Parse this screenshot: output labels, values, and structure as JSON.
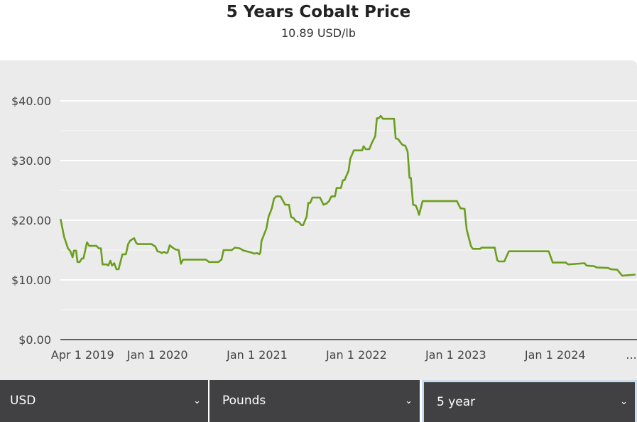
{
  "header": {
    "title": "5 Years Cobalt Price",
    "subtitle": "10.89 USD/lb"
  },
  "controls": {
    "currency": "USD",
    "unit": "Pounds",
    "period": "5 year"
  },
  "colors": {
    "line": "#6b9e1f",
    "panel": "#ebebeb",
    "select_bg": "#414042",
    "focus_border": "#c9dced"
  },
  "chart_data": {
    "type": "line",
    "title": "5 Years Cobalt Price",
    "ylim": [
      0,
      40
    ],
    "xlim": [
      "2019-01-05",
      "2024-10-17"
    ],
    "grid": true,
    "y_ticks": [
      "$0.00",
      "$10.00",
      "$20.00",
      "$30.00",
      "$40.00"
    ],
    "y_tick_values": [
      0,
      10,
      20,
      30,
      40
    ],
    "x_ticks": [
      {
        "date": "2019-04-01",
        "label": "Apr 1 2019"
      },
      {
        "date": "2020-01-01",
        "label": "Jan 1 2020"
      },
      {
        "date": "2021-01-01",
        "label": "Jan 1 2021"
      },
      {
        "date": "2022-01-01",
        "label": "Jan 1 2022"
      },
      {
        "date": "2023-01-01",
        "label": "Jan 1 2023"
      },
      {
        "date": "2024-01-01",
        "label": "Jan 1 2024"
      },
      {
        "date": "2024-10-10",
        "label": "..."
      }
    ],
    "series": [
      {
        "points": [
          [
            "2019-01-05",
            20.2
          ],
          [
            "2019-01-18",
            17.2
          ],
          [
            "2019-02-01",
            15.3
          ],
          [
            "2019-02-10",
            14.8
          ],
          [
            "2019-02-18",
            13.8
          ],
          [
            "2019-02-23",
            14.9
          ],
          [
            "2019-03-03",
            14.9
          ],
          [
            "2019-03-08",
            13.0
          ],
          [
            "2019-03-16",
            13.0
          ],
          [
            "2019-03-24",
            13.6
          ],
          [
            "2019-03-30",
            13.6
          ],
          [
            "2019-04-12",
            16.3
          ],
          [
            "2019-04-20",
            15.7
          ],
          [
            "2019-05-17",
            15.7
          ],
          [
            "2019-05-25",
            15.3
          ],
          [
            "2019-06-02",
            15.3
          ],
          [
            "2019-06-08",
            12.6
          ],
          [
            "2019-06-24",
            12.6
          ],
          [
            "2019-06-29",
            12.4
          ],
          [
            "2019-07-07",
            13.2
          ],
          [
            "2019-07-13",
            12.4
          ],
          [
            "2019-07-21",
            12.8
          ],
          [
            "2019-07-29",
            11.8
          ],
          [
            "2019-08-06",
            11.8
          ],
          [
            "2019-08-20",
            14.3
          ],
          [
            "2019-09-02",
            14.3
          ],
          [
            "2019-09-10",
            16.0
          ],
          [
            "2019-09-18",
            16.6
          ],
          [
            "2019-10-02",
            17.0
          ],
          [
            "2019-10-10",
            16.2
          ],
          [
            "2019-10-15",
            16.0
          ],
          [
            "2019-12-05",
            16.0
          ],
          [
            "2019-12-19",
            15.6
          ],
          [
            "2019-12-27",
            14.8
          ],
          [
            "2020-01-04",
            14.7
          ],
          [
            "2020-01-12",
            14.5
          ],
          [
            "2020-01-20",
            14.7
          ],
          [
            "2020-01-28",
            14.5
          ],
          [
            "2020-02-02",
            14.6
          ],
          [
            "2020-02-10",
            15.8
          ],
          [
            "2020-02-24",
            15.3
          ],
          [
            "2020-03-03",
            15.1
          ],
          [
            "2020-03-14",
            15.0
          ],
          [
            "2020-03-22",
            12.7
          ],
          [
            "2020-03-30",
            13.4
          ],
          [
            "2020-06-22",
            13.4
          ],
          [
            "2020-07-03",
            13.0
          ],
          [
            "2020-08-07",
            13.0
          ],
          [
            "2020-08-18",
            13.4
          ],
          [
            "2020-08-26",
            15.0
          ],
          [
            "2020-09-25",
            15.0
          ],
          [
            "2020-10-06",
            15.4
          ],
          [
            "2020-10-23",
            15.3
          ],
          [
            "2020-11-08",
            14.9
          ],
          [
            "2020-12-05",
            14.6
          ],
          [
            "2020-12-16",
            14.4
          ],
          [
            "2020-12-27",
            14.5
          ],
          [
            "2021-01-04",
            14.3
          ],
          [
            "2021-01-08",
            14.6
          ],
          [
            "2021-01-12",
            16.5
          ],
          [
            "2021-01-30",
            18.6
          ],
          [
            "2021-02-07",
            20.6
          ],
          [
            "2021-02-19",
            22.0
          ],
          [
            "2021-02-27",
            23.6
          ],
          [
            "2021-03-07",
            24.0
          ],
          [
            "2021-03-23",
            24.0
          ],
          [
            "2021-04-09",
            22.6
          ],
          [
            "2021-04-23",
            22.6
          ],
          [
            "2021-05-01",
            20.5
          ],
          [
            "2021-05-09",
            20.4
          ],
          [
            "2021-05-19",
            19.8
          ],
          [
            "2021-05-29",
            19.7
          ],
          [
            "2021-06-07",
            19.2
          ],
          [
            "2021-06-14",
            19.2
          ],
          [
            "2021-06-27",
            20.6
          ],
          [
            "2021-07-03",
            22.9
          ],
          [
            "2021-07-10",
            22.9
          ],
          [
            "2021-07-18",
            23.8
          ],
          [
            "2021-08-15",
            23.8
          ],
          [
            "2021-08-28",
            22.6
          ],
          [
            "2021-09-08",
            22.8
          ],
          [
            "2021-09-17",
            23.2
          ],
          [
            "2021-09-26",
            24.0
          ],
          [
            "2021-10-09",
            24.0
          ],
          [
            "2021-10-15",
            25.4
          ],
          [
            "2021-10-31",
            25.4
          ],
          [
            "2021-11-07",
            26.7
          ],
          [
            "2021-11-13",
            26.7
          ],
          [
            "2021-11-28",
            28.3
          ],
          [
            "2021-12-04",
            30.3
          ],
          [
            "2021-12-17",
            31.7
          ],
          [
            "2022-01-17",
            31.7
          ],
          [
            "2022-01-22",
            32.4
          ],
          [
            "2022-01-30",
            31.9
          ],
          [
            "2022-02-12",
            31.9
          ],
          [
            "2022-02-21",
            32.9
          ],
          [
            "2022-03-06",
            34.1
          ],
          [
            "2022-03-12",
            37.1
          ],
          [
            "2022-03-19",
            37.1
          ],
          [
            "2022-03-26",
            37.5
          ],
          [
            "2022-04-03",
            37.0
          ],
          [
            "2022-05-14",
            37.0
          ],
          [
            "2022-05-20",
            33.7
          ],
          [
            "2022-05-29",
            33.6
          ],
          [
            "2022-06-09",
            32.9
          ],
          [
            "2022-06-15",
            32.6
          ],
          [
            "2022-06-24",
            32.5
          ],
          [
            "2022-07-03",
            31.5
          ],
          [
            "2022-07-10",
            27.1
          ],
          [
            "2022-07-15",
            27.1
          ],
          [
            "2022-07-23",
            22.6
          ],
          [
            "2022-08-01",
            22.5
          ],
          [
            "2022-08-07",
            21.9
          ],
          [
            "2022-08-14",
            20.9
          ],
          [
            "2022-08-27",
            23.2
          ],
          [
            "2022-12-31",
            23.2
          ],
          [
            "2023-01-13",
            22.0
          ],
          [
            "2023-01-28",
            21.9
          ],
          [
            "2023-02-05",
            18.4
          ],
          [
            "2023-02-21",
            15.6
          ],
          [
            "2023-02-28",
            15.2
          ],
          [
            "2023-03-26",
            15.2
          ],
          [
            "2023-04-01",
            15.4
          ],
          [
            "2023-05-19",
            15.4
          ],
          [
            "2023-05-28",
            13.3
          ],
          [
            "2023-06-04",
            13.1
          ],
          [
            "2023-06-23",
            13.1
          ],
          [
            "2023-07-10",
            14.8
          ],
          [
            "2023-12-03",
            14.8
          ],
          [
            "2023-12-18",
            12.9
          ],
          [
            "2024-02-04",
            12.9
          ],
          [
            "2024-02-13",
            12.6
          ],
          [
            "2024-04-13",
            12.8
          ],
          [
            "2024-04-20",
            12.4
          ],
          [
            "2024-05-18",
            12.3
          ],
          [
            "2024-05-27",
            12.1
          ],
          [
            "2024-07-09",
            12.0
          ],
          [
            "2024-07-18",
            11.8
          ],
          [
            "2024-08-11",
            11.7
          ],
          [
            "2024-08-29",
            10.7
          ],
          [
            "2024-10-17",
            10.89
          ]
        ]
      }
    ]
  }
}
